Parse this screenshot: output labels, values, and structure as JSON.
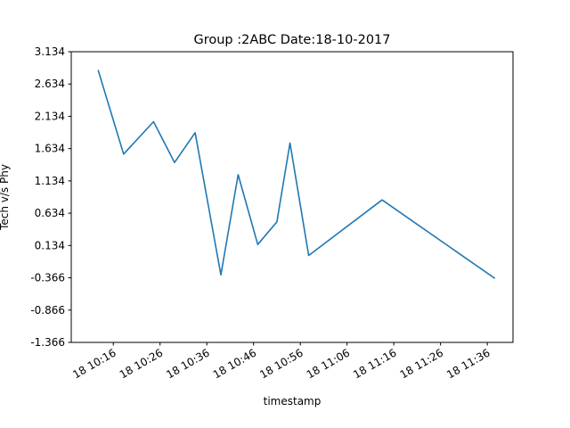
{
  "chart_data": {
    "type": "line",
    "title": "Group :2ABC Date:18-10-2017",
    "xlabel": "timestamp",
    "ylabel": "Tech v/s Phy",
    "grid": false,
    "line_color": "#1f77b4",
    "x_unit": "minutes since 10:00 on 18-10-2017",
    "xlim": [
      7.0,
      101.5
    ],
    "ylim": [
      -1.366,
      3.134
    ],
    "yticks": [
      -1.366,
      -0.866,
      -0.366,
      0.134,
      0.634,
      1.134,
      1.634,
      2.134,
      2.634,
      3.134
    ],
    "ytick_labels": [
      "-1.366",
      "-0.866",
      "-0.366",
      "0.134",
      "0.634",
      "1.134",
      "1.634",
      "2.134",
      "2.634",
      "3.134"
    ],
    "xticks": [
      16,
      26,
      36,
      46,
      56,
      66,
      76,
      86,
      96
    ],
    "xtick_labels": [
      "18 10:16",
      "18 10:26",
      "18 10:36",
      "18 10:46",
      "18 10:56",
      "18 11:06",
      "18 11:16",
      "18 11:26",
      "18 11:36"
    ],
    "series": [
      {
        "name": "Tech v/s Phy",
        "x": [
          12.8,
          18.2,
          24.6,
          29.1,
          33.5,
          39.0,
          42.7,
          46.9,
          51.0,
          53.8,
          57.8,
          73.5,
          97.5
        ],
        "y": [
          2.84,
          1.55,
          2.05,
          1.42,
          1.88,
          -0.32,
          1.23,
          0.15,
          0.5,
          1.72,
          -0.02,
          0.84,
          -0.37
        ]
      }
    ]
  }
}
